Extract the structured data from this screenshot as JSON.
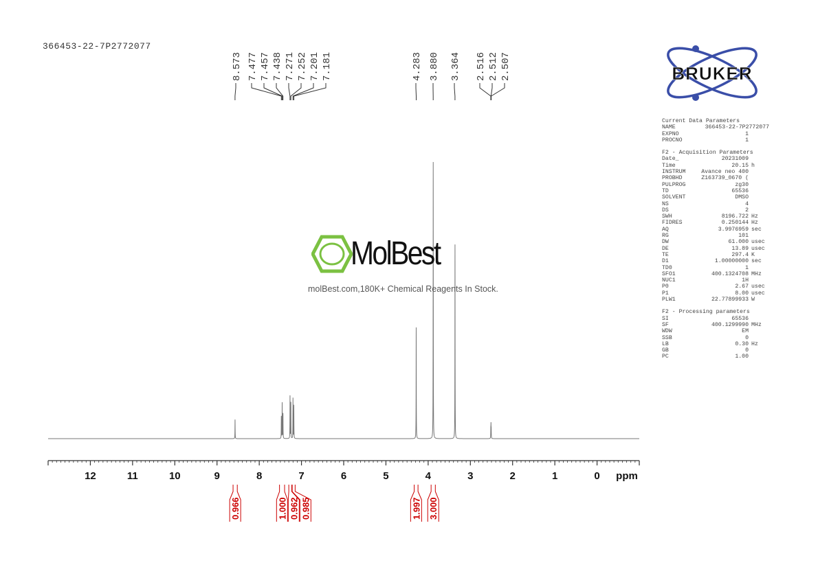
{
  "sample_name": "366453-22-7P2772077",
  "logo": {
    "text": "BRUKER",
    "color": "#3a4ea8"
  },
  "watermark": {
    "logo_text": "MolBest",
    "subtitle": "molBest.com,180K+ Chemical Reagents In Stock.",
    "color": "#7bc142"
  },
  "parameters": {
    "current": {
      "title": "Current Data Parameters",
      "rows": [
        {
          "k": "NAME",
          "v": "366453-22-7P2772077",
          "u": ""
        },
        {
          "k": "EXPNO",
          "v": "1",
          "u": ""
        },
        {
          "k": "PROCNO",
          "v": "1",
          "u": ""
        }
      ]
    },
    "acquisition": {
      "title": "F2 - Acquisition Parameters",
      "rows": [
        {
          "k": "Date_",
          "v": "20231009",
          "u": ""
        },
        {
          "k": "Time",
          "v": "20.15",
          "u": "h"
        },
        {
          "k": "INSTRUM",
          "v": "Avance neo 400",
          "u": ""
        },
        {
          "k": "PROBHD",
          "v": "Z163739_0670 (",
          "u": ""
        },
        {
          "k": "PULPROG",
          "v": "zg30",
          "u": ""
        },
        {
          "k": "TD",
          "v": "65536",
          "u": ""
        },
        {
          "k": "SOLVENT",
          "v": "DMSO",
          "u": ""
        },
        {
          "k": "NS",
          "v": "4",
          "u": ""
        },
        {
          "k": "DS",
          "v": "2",
          "u": ""
        },
        {
          "k": "SWH",
          "v": "8196.722",
          "u": "Hz"
        },
        {
          "k": "FIDRES",
          "v": "0.250144",
          "u": "Hz"
        },
        {
          "k": "AQ",
          "v": "3.9976959",
          "u": "sec"
        },
        {
          "k": "RG",
          "v": "101",
          "u": ""
        },
        {
          "k": "DW",
          "v": "61.000",
          "u": "usec"
        },
        {
          "k": "DE",
          "v": "13.89",
          "u": "usec"
        },
        {
          "k": "TE",
          "v": "297.4",
          "u": "K"
        },
        {
          "k": "D1",
          "v": "1.00000000",
          "u": "sec"
        },
        {
          "k": "TD0",
          "v": "1",
          "u": ""
        },
        {
          "k": "SFO1",
          "v": "400.1324708",
          "u": "MHz"
        },
        {
          "k": "NUC1",
          "v": "1H",
          "u": ""
        },
        {
          "k": "P0",
          "v": "2.67",
          "u": "usec"
        },
        {
          "k": "P1",
          "v": "8.00",
          "u": "usec"
        },
        {
          "k": "PLW1",
          "v": "22.77899933",
          "u": "W"
        }
      ]
    },
    "processing": {
      "title": "F2 - Processing parameters",
      "rows": [
        {
          "k": "SI",
          "v": "65536",
          "u": ""
        },
        {
          "k": "SF",
          "v": "400.1299990",
          "u": "MHz"
        },
        {
          "k": "WDW",
          "v": "EM",
          "u": ""
        },
        {
          "k": "SSB",
          "v": "0",
          "u": ""
        },
        {
          "k": "LB",
          "v": "0.30",
          "u": "Hz"
        },
        {
          "k": "GB",
          "v": "0",
          "u": ""
        },
        {
          "k": "PC",
          "v": "1.00",
          "u": ""
        }
      ]
    }
  },
  "chart_data": {
    "type": "line",
    "xlabel": "ppm",
    "xlim": [
      13,
      -1
    ],
    "ylim": [
      0,
      100
    ],
    "x_ticks": [
      "12",
      "11",
      "10",
      "9",
      "8",
      "7",
      "6",
      "5",
      "4",
      "3",
      "2",
      "1",
      "0"
    ],
    "grid": false,
    "line_color": "#777777",
    "integral_color": "#cc0000",
    "peaks": [
      {
        "ppm": 8.573,
        "height": 6.9
      },
      {
        "ppm": 7.477,
        "height": 8
      },
      {
        "ppm": 7.457,
        "height": 12.9
      },
      {
        "ppm": 7.438,
        "height": 9
      },
      {
        "ppm": 7.271,
        "height": 15.4
      },
      {
        "ppm": 7.252,
        "height": 13
      },
      {
        "ppm": 7.201,
        "height": 14.6
      },
      {
        "ppm": 7.181,
        "height": 12
      },
      {
        "ppm": 4.283,
        "height": 40.2
      },
      {
        "ppm": 3.88,
        "height": 100
      },
      {
        "ppm": 3.364,
        "height": 70.2
      },
      {
        "ppm": 2.516,
        "height": 3
      },
      {
        "ppm": 2.512,
        "height": 4.5
      },
      {
        "ppm": 2.507,
        "height": 3
      }
    ],
    "peak_labels": [
      {
        "group": 0,
        "labels": [
          "8.573"
        ]
      },
      {
        "group": 1,
        "labels": [
          "7.477",
          "7.457",
          "7.438",
          "7.271",
          "7.252",
          "7.201",
          "7.181"
        ]
      },
      {
        "group": 2,
        "labels": [
          "4.283"
        ]
      },
      {
        "group": 3,
        "labels": [
          "3.880"
        ]
      },
      {
        "group": 4,
        "labels": [
          "3.364"
        ]
      },
      {
        "group": 5,
        "labels": [
          "2.516",
          "2.512",
          "2.507"
        ]
      }
    ],
    "integrals": [
      {
        "from": 8.62,
        "to": 8.52,
        "value": "0.966"
      },
      {
        "from": 7.52,
        "to": 7.4,
        "value": "1.000"
      },
      {
        "from": 7.3,
        "to": 7.23,
        "value": "0.962"
      },
      {
        "from": 7.22,
        "to": 7.15,
        "value": "0.985"
      },
      {
        "from": 4.33,
        "to": 4.24,
        "value": "1.997"
      },
      {
        "from": 3.93,
        "to": 3.83,
        "value": "3.000"
      }
    ]
  }
}
